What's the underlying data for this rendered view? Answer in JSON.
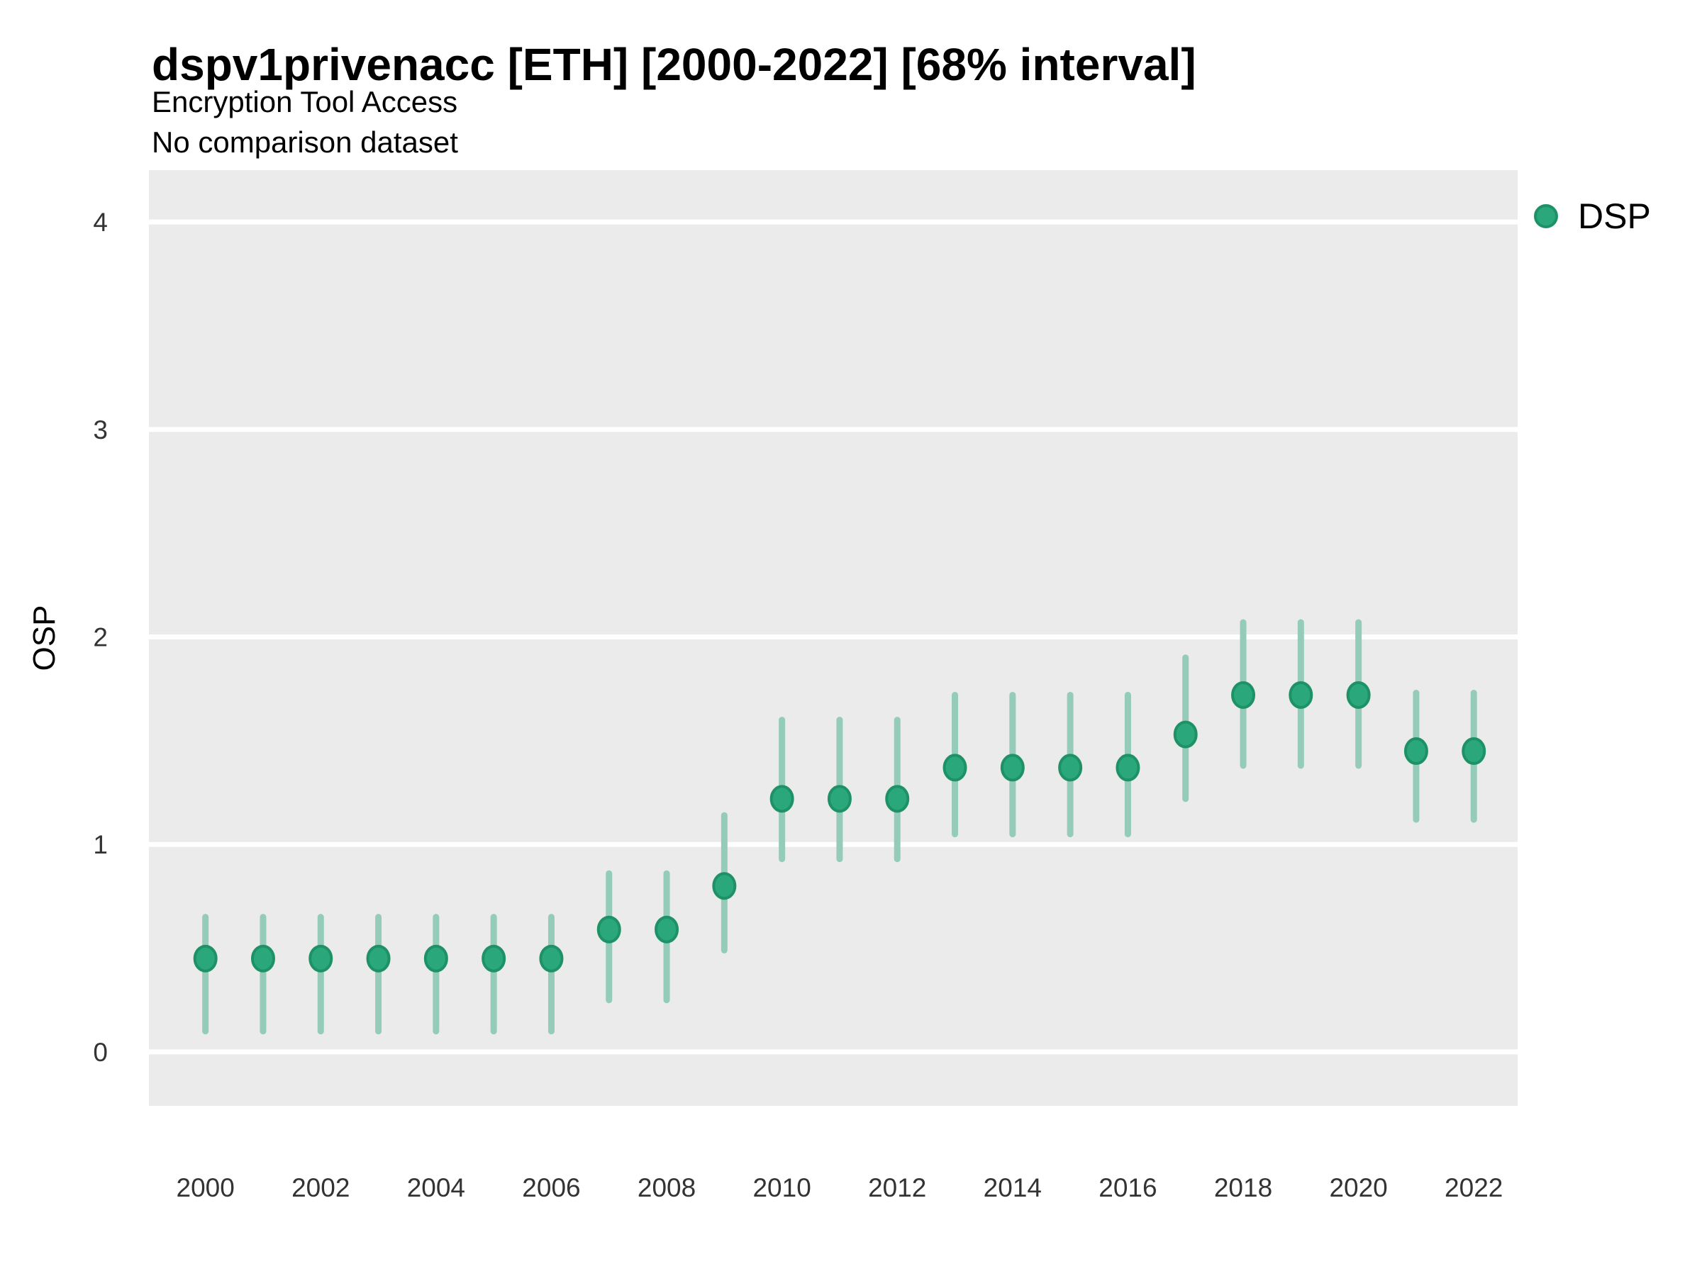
{
  "header": {
    "title": "dspv1privenacc [ETH] [2000-2022] [68% interval]",
    "subtitle": "Encryption Tool Access",
    "comparison_note": "No comparison dataset"
  },
  "legend": {
    "label": "DSP"
  },
  "colors": {
    "point_fill": "#2BA77C",
    "point_border": "#1E9266",
    "error_bar": "#94CCB9",
    "panel_background": "#EBEBEB",
    "gridline": "#FFFFFF",
    "tick_text": "#333333"
  },
  "chart_data": {
    "type": "scatter",
    "title": "dspv1privenacc [ETH] [2000-2022] [68% interval]",
    "subtitle": "Encryption Tool Access",
    "note": "No comparison dataset",
    "interval": "68%",
    "xlabel": "",
    "ylabel": "OSP",
    "grid": "horizontal-major-only",
    "legend_position": "right-top",
    "xlim": [
      1999.02,
      2022.76
    ],
    "ylim": [
      -0.26,
      4.25
    ],
    "x_ticks": [
      2000,
      2002,
      2004,
      2006,
      2008,
      2010,
      2012,
      2014,
      2016,
      2018,
      2020,
      2022
    ],
    "y_ticks": [
      0,
      1,
      2,
      3,
      4
    ],
    "series": [
      {
        "name": "DSP",
        "points": [
          {
            "year": 2000,
            "value": 0.45,
            "lo": 0.1,
            "hi": 0.65
          },
          {
            "year": 2001,
            "value": 0.45,
            "lo": 0.1,
            "hi": 0.65
          },
          {
            "year": 2002,
            "value": 0.45,
            "lo": 0.1,
            "hi": 0.65
          },
          {
            "year": 2003,
            "value": 0.45,
            "lo": 0.1,
            "hi": 0.65
          },
          {
            "year": 2004,
            "value": 0.45,
            "lo": 0.1,
            "hi": 0.65
          },
          {
            "year": 2005,
            "value": 0.45,
            "lo": 0.1,
            "hi": 0.65
          },
          {
            "year": 2006,
            "value": 0.45,
            "lo": 0.1,
            "hi": 0.65
          },
          {
            "year": 2007,
            "value": 0.59,
            "lo": 0.25,
            "hi": 0.86
          },
          {
            "year": 2008,
            "value": 0.59,
            "lo": 0.25,
            "hi": 0.86
          },
          {
            "year": 2009,
            "value": 0.8,
            "lo": 0.49,
            "hi": 1.14
          },
          {
            "year": 2010,
            "value": 1.22,
            "lo": 0.93,
            "hi": 1.6
          },
          {
            "year": 2011,
            "value": 1.22,
            "lo": 0.93,
            "hi": 1.6
          },
          {
            "year": 2012,
            "value": 1.22,
            "lo": 0.93,
            "hi": 1.6
          },
          {
            "year": 2013,
            "value": 1.37,
            "lo": 1.05,
            "hi": 1.72
          },
          {
            "year": 2014,
            "value": 1.37,
            "lo": 1.05,
            "hi": 1.72
          },
          {
            "year": 2015,
            "value": 1.37,
            "lo": 1.05,
            "hi": 1.72
          },
          {
            "year": 2016,
            "value": 1.37,
            "lo": 1.05,
            "hi": 1.72
          },
          {
            "year": 2017,
            "value": 1.53,
            "lo": 1.22,
            "hi": 1.9
          },
          {
            "year": 2018,
            "value": 1.72,
            "lo": 1.38,
            "hi": 2.07
          },
          {
            "year": 2019,
            "value": 1.72,
            "lo": 1.38,
            "hi": 2.07
          },
          {
            "year": 2020,
            "value": 1.72,
            "lo": 1.38,
            "hi": 2.07
          },
          {
            "year": 2021,
            "value": 1.45,
            "lo": 1.12,
            "hi": 1.73
          },
          {
            "year": 2022,
            "value": 1.45,
            "lo": 1.12,
            "hi": 1.73
          }
        ]
      }
    ]
  }
}
